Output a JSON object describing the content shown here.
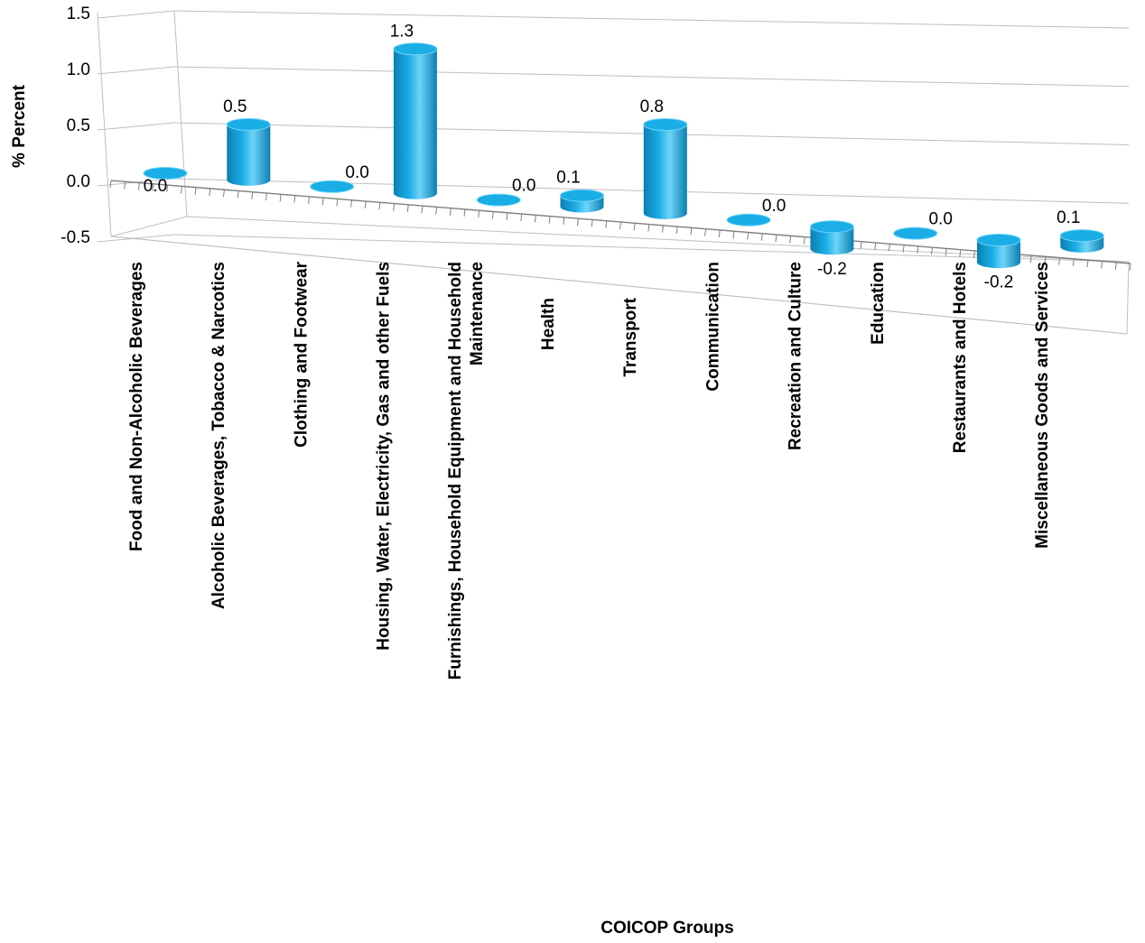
{
  "chart_data": {
    "type": "bar",
    "style": "3d-cylinder",
    "xlabel": "COICOP Groups",
    "ylabel": "% Percent",
    "ylim": [
      -0.5,
      1.5
    ],
    "yticks": [
      "1.5",
      "1.0",
      "0.5",
      "0.0",
      "-0.5"
    ],
    "grid": true,
    "legend": "none",
    "bar_color": "#1AADE6",
    "bar_dark": "#0B7FB3",
    "bar_light": "#6FD4F7",
    "categories": [
      [
        "Food and Non-Alcoholic Beverages"
      ],
      [
        "Alcoholic Beverages, Tobacco & Narcotics"
      ],
      [
        "Clothing and Footwear"
      ],
      [
        "Housing, Water, Electricity, Gas and other Fuels"
      ],
      [
        "Furnishings, Household Equipment and Household",
        "Maintenance"
      ],
      [
        "Health"
      ],
      [
        "Transport"
      ],
      [
        "Communication"
      ],
      [
        "Recreation and Culture"
      ],
      [
        "Education"
      ],
      [
        "Restaurants and Hotels"
      ],
      [
        "Miscellaneous Goods and Services"
      ]
    ],
    "values": [
      0.0,
      0.5,
      0.0,
      1.3,
      0.0,
      0.1,
      0.8,
      0.0,
      -0.2,
      0.0,
      -0.2,
      0.1
    ],
    "value_labels": [
      "0.0",
      "0.5",
      "0.0",
      "1.3",
      "0.0",
      "0.1",
      "0.8",
      "0.0",
      "-0.2",
      "0.0",
      "-0.2",
      "0.1"
    ]
  }
}
